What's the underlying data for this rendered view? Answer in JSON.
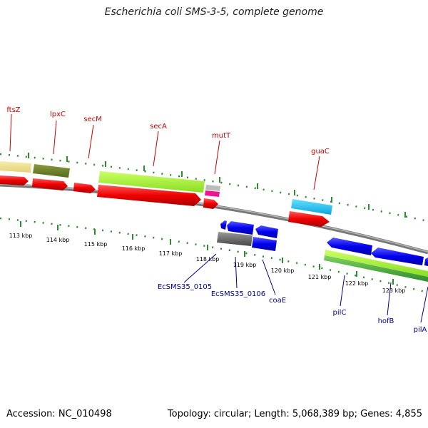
{
  "title": "Escherichia coli SMS-3-5, complete genome",
  "accession": "Accession: NC_010498",
  "topology": "Topology: circular; Length: 5,068,389 bp; Genes: 4,855",
  "scale_labels": [
    "113 kbp",
    "114 kbp",
    "115 kbp",
    "116 kbp",
    "117 kbp",
    "118 kbp",
    "119 kbp",
    "120 kbp",
    "121 kbp",
    "122 kbp",
    "123 kbp"
  ],
  "colors": {
    "cds_forward": "#ff0000",
    "cds_reverse": "#0000ff",
    "backbone": "#808080",
    "dots": "#228b22",
    "top_label": "#cc0000",
    "bottom_label": "#00008b"
  },
  "genes_top": [
    "ftsZ",
    "lpxC",
    "secM",
    "secA",
    "mutT",
    "guaC"
  ],
  "genes_bottom": [
    "EcSMS35_0105",
    "EcSMS35_0106",
    "coaE",
    "pilC",
    "hofB",
    "pilA"
  ]
}
